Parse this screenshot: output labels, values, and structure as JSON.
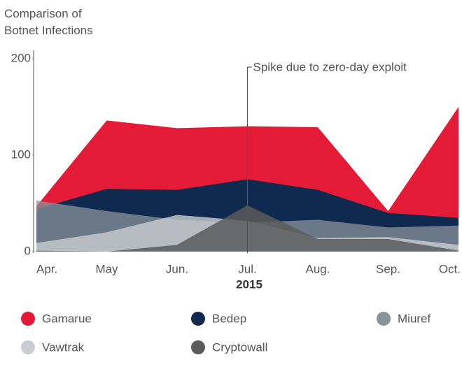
{
  "chart_data": {
    "type": "area",
    "title": "Comparison of Botnet Infections",
    "xlabel": "2015",
    "categories": [
      "Apr.",
      "May",
      "Jun.",
      "Jul.",
      "Aug.",
      "Sep.",
      "Oct."
    ],
    "series": [
      {
        "name": "Gamarue",
        "color": "#e31b37",
        "values": [
          47,
          136,
          128,
          130,
          129,
          42,
          150
        ]
      },
      {
        "name": "Bedep",
        "color": "#0f2a4e",
        "values": [
          44,
          65,
          64,
          75,
          64,
          40,
          35
        ]
      },
      {
        "name": "Miuref",
        "color": "#8a939c",
        "values": [
          53,
          42,
          33,
          30,
          33,
          25,
          27
        ]
      },
      {
        "name": "Vawtrak",
        "color": "#c9cdd1",
        "values": [
          9,
          20,
          38,
          32,
          14,
          15,
          7
        ]
      },
      {
        "name": "Cryptowall",
        "color": "#5b5b5b",
        "values": [
          1,
          0,
          7,
          48,
          13,
          13,
          1
        ]
      }
    ],
    "ylim": [
      0,
      200
    ],
    "yticks": [
      0,
      100,
      200
    ],
    "annotation": {
      "text": "Spike due to zero-day exploit",
      "x": "Jul."
    }
  }
}
